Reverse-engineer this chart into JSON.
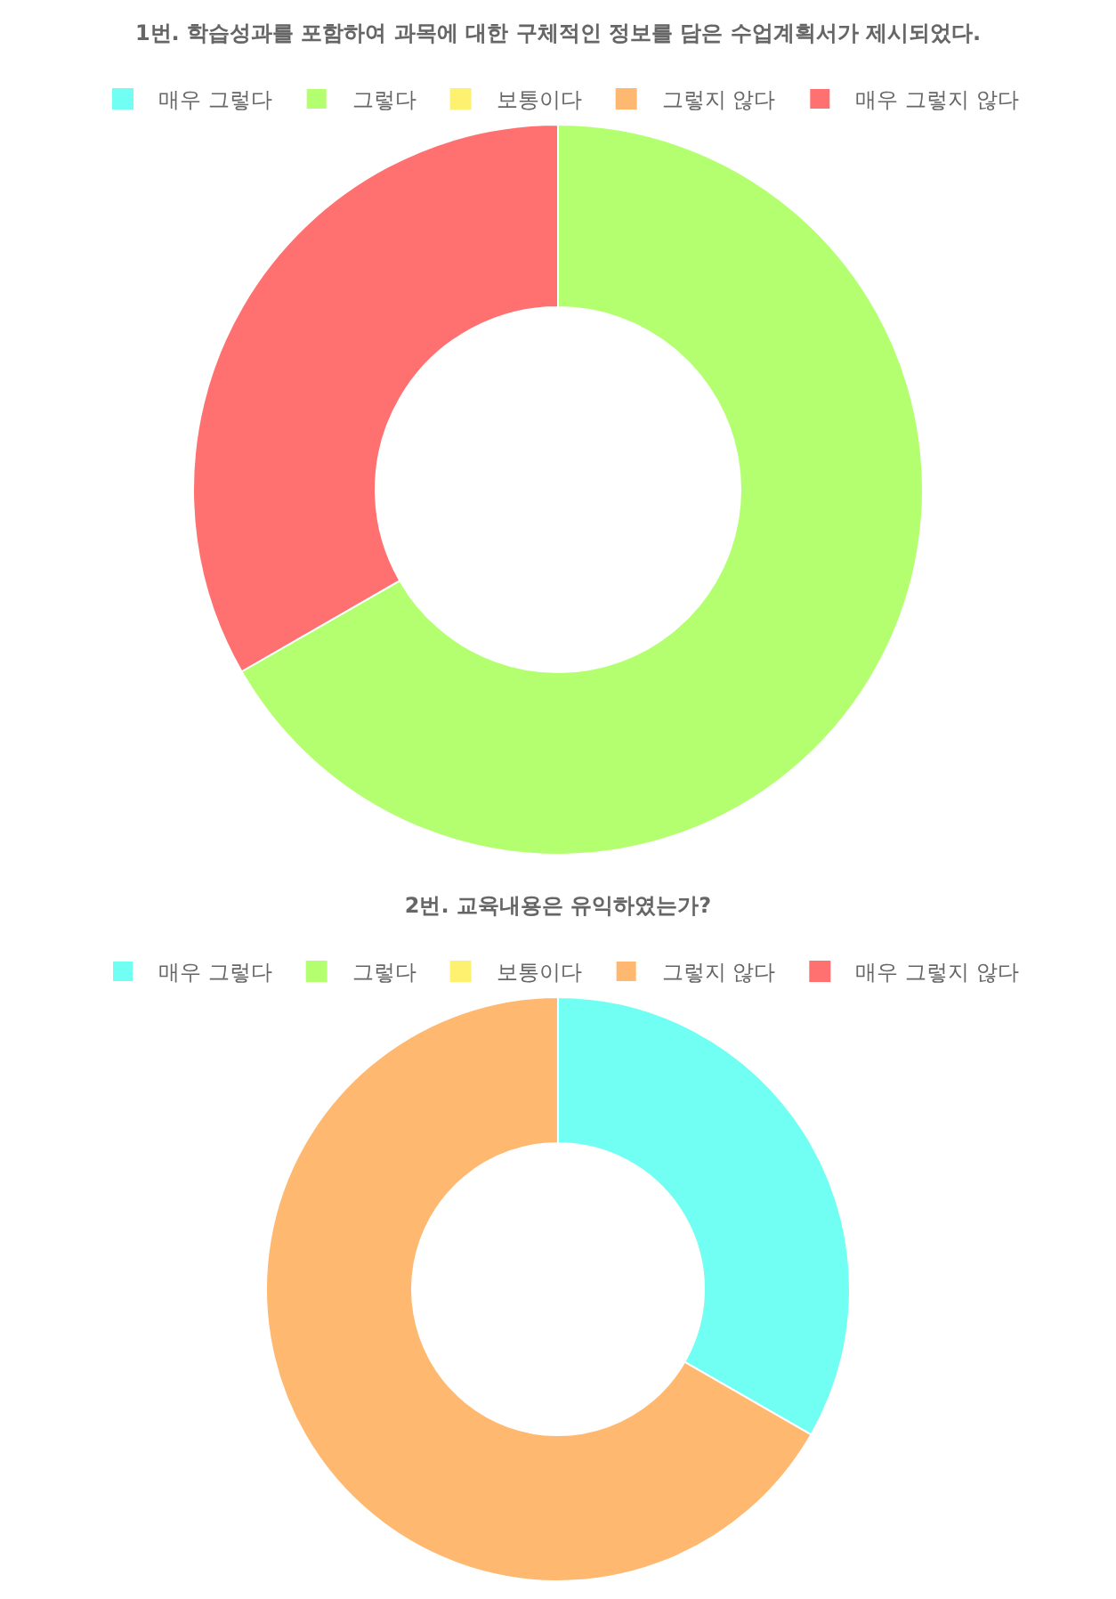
{
  "chart_data": [
    {
      "type": "donut",
      "title": "1번. 학습성과를 포함하여 과목에 대한 구체적인 정보를 담은 수업계획서가 제시되었다.",
      "categories": [
        "매우 그렇다",
        "그렇다",
        "보통이다",
        "그렇지 않다",
        "매우 그렇지 않다"
      ],
      "values": [
        0,
        66.7,
        0,
        0,
        33.3
      ],
      "colors": [
        "#70fff2",
        "#b3ff70",
        "#fff170",
        "#ffb870",
        "#ff7070"
      ],
      "legend": "top"
    },
    {
      "type": "donut",
      "title": "2번. 교육내용은 유익하였는가?",
      "categories": [
        "매우 그렇다",
        "그렇다",
        "보통이다",
        "그렇지 않다",
        "매우 그렇지 않다"
      ],
      "values": [
        33.3,
        0,
        0,
        66.7,
        0
      ],
      "colors": [
        "#70fff2",
        "#b3ff70",
        "#fff170",
        "#ffb870",
        "#ff7070"
      ],
      "legend": "top"
    }
  ]
}
